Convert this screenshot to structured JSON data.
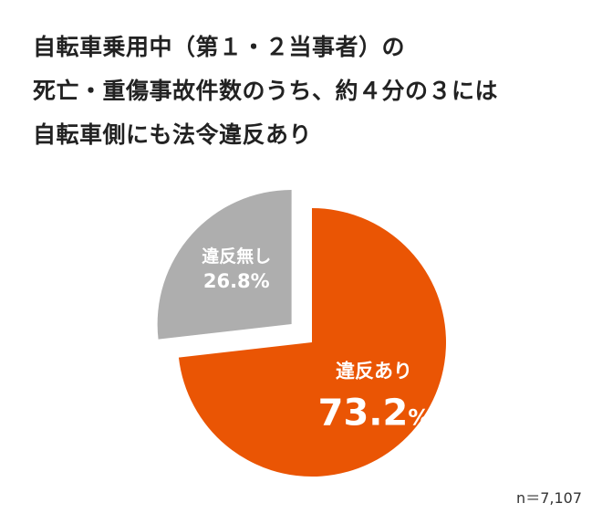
{
  "title_lines": [
    "自転車乗用中（第１・２当事者）の",
    "死亡・重傷事故件数のうち、約４分の３には",
    "自転車側にも法令違反あり"
  ],
  "note": "n＝7,107",
  "colors": {
    "with_violation": "#EA5504",
    "no_violation": "#AEAEAE"
  },
  "chart_data": {
    "type": "pie",
    "labels": [
      "違反あり",
      "違反無し"
    ],
    "values": [
      73.2,
      26.8
    ],
    "value_labels": [
      "73.2%",
      "26.8%"
    ],
    "exploded": "違反無し"
  }
}
